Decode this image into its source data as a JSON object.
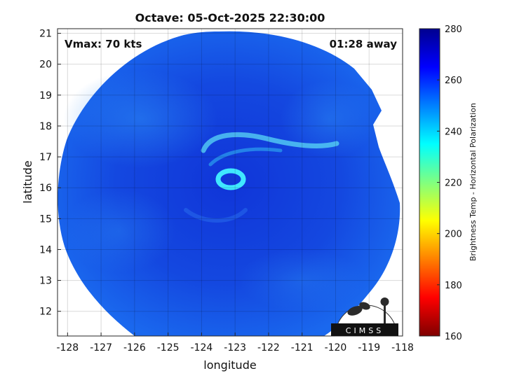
{
  "title": "Octave: 05-Oct-2025 22:30:00",
  "vmax_label": "Vmax: 70 kts",
  "time_away_label": "01:28 away",
  "axes": {
    "xlabel": "longitude",
    "ylabel": "latitude",
    "xlim": [
      -128.3,
      -118
    ],
    "ylim": [
      11.2,
      21.15
    ],
    "xticks": [
      "-128",
      "-127",
      "-126",
      "-125",
      "-124",
      "-123",
      "-122",
      "-121",
      "-120",
      "-119",
      "-118"
    ],
    "xtick_values": [
      -128,
      -127,
      -126,
      -125,
      -124,
      -123,
      -122,
      -121,
      -120,
      -119,
      -118
    ],
    "yticks": [
      "12",
      "13",
      "14",
      "15",
      "16",
      "17",
      "18",
      "19",
      "20",
      "21"
    ],
    "ytick_values": [
      12,
      13,
      14,
      15,
      16,
      17,
      18,
      19,
      20,
      21
    ],
    "grid": true
  },
  "storm_center": {
    "lon": -123.1,
    "lat": 16.1
  },
  "colorbar": {
    "label": "Brightness Temp - Horizontal Polarization",
    "min": 160,
    "max": 280,
    "ticks": [
      "280",
      "260",
      "240",
      "220",
      "200",
      "180",
      "160"
    ],
    "tick_values": [
      280,
      260,
      240,
      220,
      200,
      180,
      160
    ],
    "colormap": "jet",
    "colors": [
      "#7f0000",
      "#ff0000",
      "#ff8000",
      "#ffff00",
      "#80ff80",
      "#00ffff",
      "#0080ff",
      "#0000ff",
      "#00008f"
    ]
  },
  "logo": {
    "text": "CIMSS"
  },
  "colors": {
    "swath_outer": "#1a5ee8",
    "swath_dark": "#1030d8",
    "eyewall": "#40e0ff",
    "eye": "#1238d0"
  }
}
